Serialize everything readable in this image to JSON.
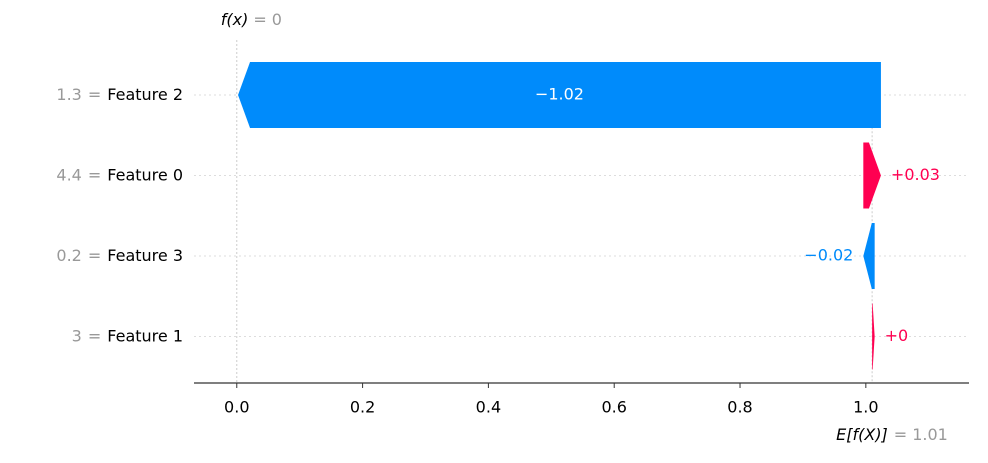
{
  "chart_data": {
    "type": "waterfall",
    "fx_label": "f(x)",
    "fx": 0,
    "base_label": "E[f(X)]",
    "base": 1.01,
    "separator": "=",
    "categories": [
      "Feature 2",
      "Feature 0",
      "Feature 3",
      "Feature 1"
    ],
    "feature_values": [
      1.3,
      4.4,
      0.2,
      3
    ],
    "values": [
      -1.022,
      0.028,
      -0.018,
      0.004
    ],
    "value_labels": [
      "−1.02",
      "+0.03",
      "−0.02",
      "+0"
    ],
    "colors": {
      "positive": "#ff0051",
      "negative": "#008bfb"
    },
    "xlim": [
      -0.068,
      1.164
    ],
    "xticks": [
      {
        "value": 0,
        "label": "0.0"
      },
      0.2,
      0.4,
      0.6,
      0.8,
      {
        "value": 1,
        "label": "1.0"
      }
    ]
  }
}
